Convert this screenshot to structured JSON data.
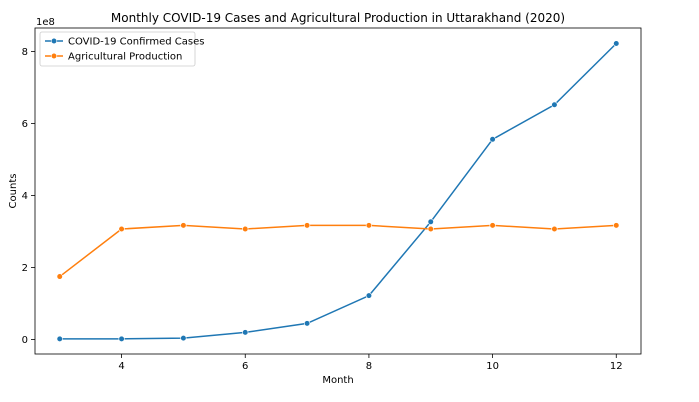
{
  "chart_data": {
    "type": "line",
    "title": "Monthly COVID-19 Cases and Agricultural Production in Uttarakhand (2020)",
    "xlabel": "Month",
    "ylabel": "Counts",
    "y_scale_label": "1e8",
    "x": [
      3,
      4,
      5,
      6,
      7,
      8,
      9,
      10,
      11,
      12
    ],
    "xlim": [
      2.6,
      12.4
    ],
    "ylim": [
      -0.4,
      8.65
    ],
    "x_ticks": [
      4,
      6,
      8,
      10,
      12
    ],
    "y_ticks": [
      0,
      2,
      4,
      6,
      8
    ],
    "grid": false,
    "legend_position": "top-left",
    "series": [
      {
        "name": "COVID-19 Confirmed Cases",
        "color": "#1f77b4",
        "values": [
          0.02,
          0.02,
          0.04,
          0.2,
          0.45,
          1.22,
          3.27,
          5.56,
          6.52,
          8.22
        ]
      },
      {
        "name": "Agricultural Production",
        "color": "#ff7f0e",
        "values": [
          1.75,
          3.07,
          3.17,
          3.07,
          3.17,
          3.17,
          3.07,
          3.17,
          3.07,
          3.17
        ]
      }
    ]
  }
}
